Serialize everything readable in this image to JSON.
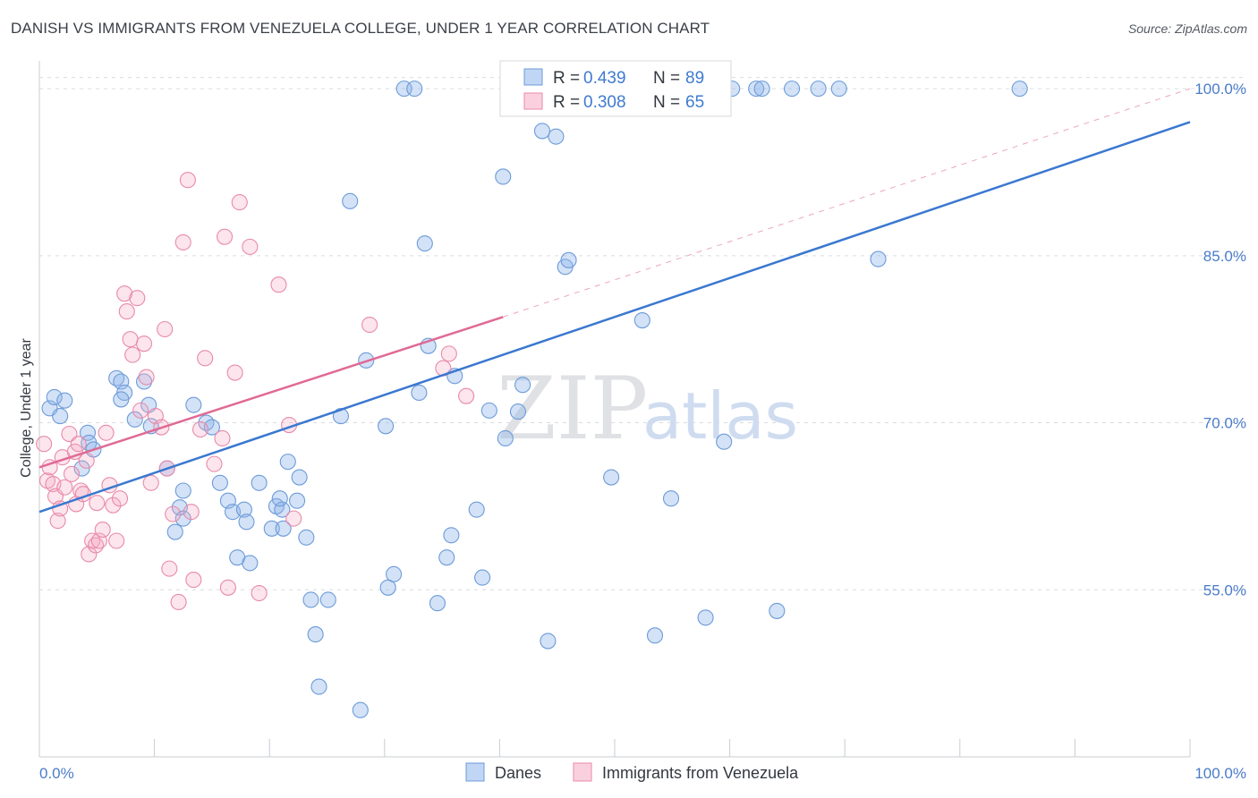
{
  "header": {
    "title": "DANISH VS IMMIGRANTS FROM VENEZUELA COLLEGE, UNDER 1 YEAR CORRELATION CHART",
    "source": "Source: ZipAtlas.com"
  },
  "watermark": {
    "zip": "ZIP",
    "atlas": "atlas"
  },
  "legend_top": {
    "rows": [
      {
        "r_label": "R = ",
        "r_value": "0.439",
        "n_label": "N = ",
        "n_value": "89"
      },
      {
        "r_label": "R = ",
        "r_value": "0.308",
        "n_label": "N = ",
        "n_value": "65"
      }
    ]
  },
  "legend_bottom": {
    "items": [
      "Danes",
      "Immigrants from Venezuela"
    ]
  },
  "colors": {
    "danes": "#3a78d0",
    "venezuela": "#e06a95",
    "tick": "#4a7cc9"
  },
  "chart_data": {
    "type": "scatter",
    "title": "DANISH VS IMMIGRANTS FROM VENEZUELA COLLEGE, UNDER 1 YEAR CORRELATION CHART",
    "xlabel": "",
    "ylabel": "College, Under 1 year",
    "xlim": [
      0,
      100
    ],
    "ylim": [
      40,
      102.5
    ],
    "x_tick_labels": [
      "0.0%",
      "100.0%"
    ],
    "y_ticks": [
      55,
      70,
      85,
      100
    ],
    "y_tick_labels": [
      "55.0%",
      "70.0%",
      "85.0%",
      "100.0%"
    ],
    "grid": true,
    "legend": "top-center",
    "series": [
      {
        "name": "Danes",
        "r": 0.439,
        "n": 89,
        "trend": {
          "x": [
            0,
            100
          ],
          "y": [
            62.0,
            97.0
          ]
        },
        "points": [
          [
            0.9,
            71.3
          ],
          [
            1.3,
            72.3
          ],
          [
            1.8,
            70.6
          ],
          [
            2.2,
            72.0
          ],
          [
            4.2,
            69.1
          ],
          [
            4.3,
            68.2
          ],
          [
            4.7,
            67.6
          ],
          [
            3.7,
            65.9
          ],
          [
            6.7,
            74.0
          ],
          [
            7.1,
            73.7
          ],
          [
            7.4,
            72.7
          ],
          [
            7.1,
            72.1
          ],
          [
            8.3,
            70.3
          ],
          [
            9.1,
            73.7
          ],
          [
            9.5,
            71.6
          ],
          [
            9.7,
            69.7
          ],
          [
            11.1,
            65.9
          ],
          [
            11.8,
            60.2
          ],
          [
            12.2,
            62.4
          ],
          [
            12.5,
            61.4
          ],
          [
            12.5,
            63.9
          ],
          [
            13.4,
            71.6
          ],
          [
            14.5,
            70.0
          ],
          [
            15.0,
            69.6
          ],
          [
            15.7,
            64.6
          ],
          [
            16.4,
            63.0
          ],
          [
            16.8,
            62.0
          ],
          [
            17.2,
            57.9
          ],
          [
            17.8,
            62.2
          ],
          [
            18.0,
            61.1
          ],
          [
            18.3,
            57.4
          ],
          [
            19.1,
            64.6
          ],
          [
            20.2,
            60.5
          ],
          [
            20.6,
            62.5
          ],
          [
            21.1,
            62.2
          ],
          [
            20.9,
            63.2
          ],
          [
            21.2,
            60.5
          ],
          [
            21.6,
            66.5
          ],
          [
            22.4,
            63.0
          ],
          [
            22.6,
            65.1
          ],
          [
            23.2,
            59.7
          ],
          [
            23.6,
            54.1
          ],
          [
            24.0,
            51.0
          ],
          [
            24.3,
            46.3
          ],
          [
            25.1,
            54.1
          ],
          [
            26.2,
            70.6
          ],
          [
            27.0,
            89.9
          ],
          [
            27.9,
            44.2
          ],
          [
            28.4,
            75.6
          ],
          [
            30.1,
            69.7
          ],
          [
            30.3,
            55.2
          ],
          [
            30.8,
            56.4
          ],
          [
            31.7,
            100.0
          ],
          [
            32.6,
            100.0
          ],
          [
            33.0,
            72.7
          ],
          [
            33.5,
            86.1
          ],
          [
            33.8,
            76.9
          ],
          [
            34.6,
            53.8
          ],
          [
            35.4,
            57.9
          ],
          [
            35.8,
            59.9
          ],
          [
            36.1,
            74.2
          ],
          [
            38.0,
            62.2
          ],
          [
            38.5,
            56.1
          ],
          [
            39.1,
            71.1
          ],
          [
            40.3,
            92.1
          ],
          [
            40.5,
            68.6
          ],
          [
            41.6,
            71.0
          ],
          [
            42.0,
            73.4
          ],
          [
            43.7,
            96.2
          ],
          [
            44.2,
            50.4
          ],
          [
            44.9,
            95.7
          ],
          [
            45.7,
            84.0
          ],
          [
            46.0,
            84.6
          ],
          [
            49.7,
            65.1
          ],
          [
            50.6,
            100.0
          ],
          [
            52.4,
            79.2
          ],
          [
            53.5,
            50.9
          ],
          [
            54.9,
            63.2
          ],
          [
            57.9,
            52.5
          ],
          [
            59.5,
            68.3
          ],
          [
            60.2,
            100.0
          ],
          [
            62.3,
            100.0
          ],
          [
            62.8,
            100.0
          ],
          [
            64.1,
            53.1
          ],
          [
            65.4,
            100.0
          ],
          [
            67.7,
            100.0
          ],
          [
            69.5,
            100.0
          ],
          [
            72.9,
            84.7
          ],
          [
            85.2,
            100.0
          ]
        ]
      },
      {
        "name": "Immigrants from Venezuela",
        "r": 0.308,
        "n": 65,
        "trend": {
          "x": [
            0,
            40.3
          ],
          "y": [
            66.0,
            79.5
          ]
        },
        "extension": {
          "x": [
            40.3,
            100
          ],
          "y": [
            79.5,
            100
          ]
        },
        "points": [
          [
            0.4,
            68.1
          ],
          [
            0.7,
            64.8
          ],
          [
            0.9,
            66.0
          ],
          [
            1.2,
            64.5
          ],
          [
            1.4,
            63.4
          ],
          [
            1.6,
            61.2
          ],
          [
            1.8,
            62.3
          ],
          [
            2.0,
            66.9
          ],
          [
            2.2,
            64.2
          ],
          [
            2.6,
            69.0
          ],
          [
            2.8,
            65.4
          ],
          [
            3.1,
            67.4
          ],
          [
            3.2,
            62.7
          ],
          [
            3.4,
            68.1
          ],
          [
            3.6,
            63.9
          ],
          [
            3.8,
            63.6
          ],
          [
            4.1,
            66.6
          ],
          [
            4.3,
            58.2
          ],
          [
            4.6,
            59.4
          ],
          [
            4.9,
            59.0
          ],
          [
            5.0,
            62.8
          ],
          [
            5.2,
            59.4
          ],
          [
            5.5,
            60.4
          ],
          [
            5.8,
            69.1
          ],
          [
            6.1,
            64.4
          ],
          [
            6.4,
            62.6
          ],
          [
            6.7,
            59.4
          ],
          [
            7.0,
            63.2
          ],
          [
            7.4,
            81.6
          ],
          [
            7.6,
            80.0
          ],
          [
            7.9,
            77.5
          ],
          [
            8.1,
            76.1
          ],
          [
            8.5,
            81.2
          ],
          [
            8.8,
            71.1
          ],
          [
            9.1,
            77.1
          ],
          [
            9.3,
            74.1
          ],
          [
            9.7,
            64.6
          ],
          [
            10.1,
            70.6
          ],
          [
            10.6,
            69.6
          ],
          [
            10.9,
            78.4
          ],
          [
            11.1,
            65.9
          ],
          [
            11.3,
            56.9
          ],
          [
            11.6,
            61.8
          ],
          [
            12.1,
            53.9
          ],
          [
            12.5,
            86.2
          ],
          [
            12.9,
            91.8
          ],
          [
            13.2,
            62.0
          ],
          [
            13.4,
            55.9
          ],
          [
            14.0,
            69.4
          ],
          [
            14.4,
            75.8
          ],
          [
            15.2,
            66.3
          ],
          [
            15.9,
            68.6
          ],
          [
            16.1,
            86.7
          ],
          [
            16.4,
            55.2
          ],
          [
            17.0,
            74.5
          ],
          [
            17.4,
            89.8
          ],
          [
            18.3,
            85.8
          ],
          [
            19.1,
            54.7
          ],
          [
            20.8,
            82.4
          ],
          [
            21.7,
            69.8
          ],
          [
            22.1,
            61.4
          ],
          [
            28.7,
            78.8
          ],
          [
            35.1,
            74.9
          ],
          [
            35.6,
            76.2
          ],
          [
            37.1,
            72.4
          ]
        ]
      }
    ]
  }
}
